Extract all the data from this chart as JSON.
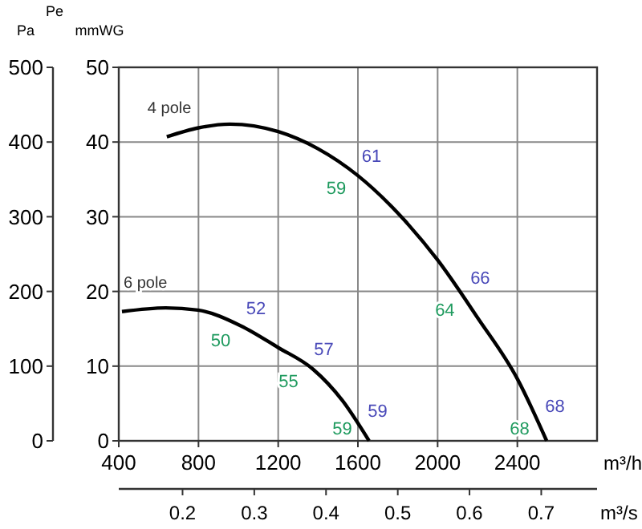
{
  "chart_data": {
    "type": "line",
    "xlabel": "m³/h",
    "x2label": "m³/s",
    "ylabel": "mmWG",
    "y2label": "Pa",
    "annotations": [
      "Pe",
      {
        "text": "61",
        "x": 1580,
        "y": 36
      },
      {
        "text": "59",
        "x": 1580,
        "y": 36
      },
      {
        "text": "66",
        "x": 2125,
        "y": 19.7
      },
      {
        "text": "64",
        "x": 2125,
        "y": 19.7
      },
      {
        "text": "68",
        "x": 2500,
        "y": 2.5
      },
      {
        "text": "68",
        "x": 2500,
        "y": 2.5
      },
      {
        "text": "52",
        "x": 1000,
        "y": 15.6
      },
      {
        "text": "50",
        "x": 1000,
        "y": 15.6
      },
      {
        "text": "57",
        "x": 1340,
        "y": 10.2
      },
      {
        "text": "55",
        "x": 1340,
        "y": 10.2
      },
      {
        "text": "59",
        "x": 1610,
        "y": 1.9
      },
      {
        "text": "59",
        "x": 1610,
        "y": 1.9
      }
    ],
    "xlim": [
      400,
      2800
    ],
    "xticks": [
      400,
      800,
      1200,
      1600,
      2000,
      2400
    ],
    "x2lim": [
      0.1111,
      0.7778
    ],
    "x2ticks": [
      0.2,
      0.3,
      0.4,
      0.5,
      0.6,
      0.7
    ],
    "ylim": [
      0,
      50
    ],
    "yticks": [
      0,
      10,
      20,
      30,
      40,
      50
    ],
    "y2lim": [
      0,
      500
    ],
    "y2ticks": [
      0,
      100,
      200,
      300,
      400,
      500
    ],
    "grid": true,
    "marker": "none",
    "line_style": "solid",
    "series": [
      {
        "name": "4 pole",
        "color": "#000000",
        "x": [
          641,
          800,
          958,
          1200,
          1400,
          1600,
          1800,
          2000,
          2200,
          2400,
          2547
        ],
        "values": [
          40.7,
          41.9,
          42.4,
          41.4,
          39.1,
          35.5,
          30.5,
          24.2,
          16.5,
          8.3,
          0
        ]
      },
      {
        "name": "6 pole",
        "color": "#000000",
        "x": [
          416,
          636,
          797,
          1012,
          1199,
          1374,
          1522,
          1656
        ],
        "values": [
          17.3,
          17.8,
          17.5,
          15.4,
          12.5,
          9.6,
          5.4,
          0
        ]
      }
    ]
  }
}
